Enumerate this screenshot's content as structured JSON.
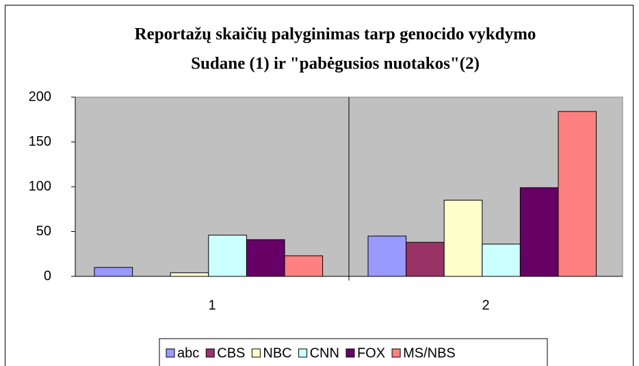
{
  "chart_data": {
    "type": "bar",
    "title": [
      "Reportažų skaičių palyginimas tarp genocido vykdymo",
      "Sudane (1)  ir \"pabėgusios nuotakos\"(2)"
    ],
    "categories": [
      "1",
      "2"
    ],
    "series": [
      {
        "name": "abc",
        "color": "#9999ff",
        "values": [
          10,
          45
        ]
      },
      {
        "name": "CBS",
        "color": "#993366",
        "values": [
          0,
          38
        ]
      },
      {
        "name": "NBC",
        "color": "#ffffcc",
        "values": [
          4,
          85
        ]
      },
      {
        "name": "CNN",
        "color": "#ccffff",
        "values": [
          46,
          36
        ]
      },
      {
        "name": "FOX",
        "color": "#660066",
        "values": [
          41,
          99
        ]
      },
      {
        "name": "MS/NBS",
        "color": "#ff8080",
        "values": [
          23,
          184
        ]
      }
    ],
    "ylim": [
      0,
      200
    ],
    "yticks": [
      0,
      50,
      100,
      150,
      200
    ],
    "grid": false,
    "legend": "bottom"
  }
}
